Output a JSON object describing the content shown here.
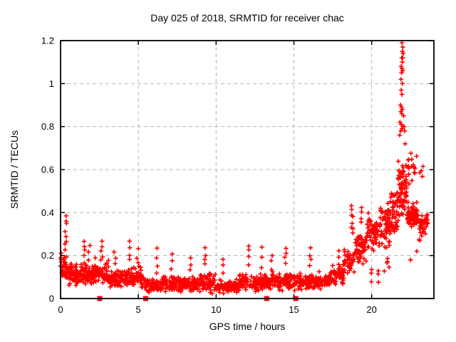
{
  "header": {
    "title": "Day 025 of 2018, SRMTID for receiver chac"
  },
  "chart_data": {
    "type": "scatter",
    "title": "Day 025 of 2018, SRMTID for receiver chac",
    "xlabel": "GPS time / hours",
    "ylabel": "SRMTID / TECUs",
    "xlim": [
      0,
      24
    ],
    "ylim": [
      0,
      1.2
    ],
    "xticks": [
      0,
      5,
      10,
      15,
      20
    ],
    "xtick_labels": [
      "0",
      "5",
      "10",
      "15",
      "20"
    ],
    "yticks": [
      0,
      0.2,
      0.4,
      0.6,
      0.8,
      1.0,
      1.2
    ],
    "ytick_labels": [
      "0",
      "0.2",
      "0.4",
      "0.6",
      "0.8",
      "1",
      "1.2"
    ],
    "grid": "dashed",
    "legend": "none",
    "marker": "plus",
    "marker_color": "#ff0000",
    "grid_color": "#b3b3b3",
    "border_color": "#000000",
    "background_color": "#ffffff",
    "seed": 42,
    "band_columns": [
      "t_start",
      "t_end",
      "count",
      "mean",
      "half_spread",
      "y_min",
      "y_max"
    ],
    "bands": [
      [
        0.0,
        0.3,
        25,
        0.15,
        0.05,
        0.07,
        0.22
      ],
      [
        0.3,
        0.5,
        14,
        0.12,
        0.05,
        0.05,
        0.2
      ],
      [
        0.5,
        1.2,
        55,
        0.11,
        0.05,
        0.03,
        0.2
      ],
      [
        1.2,
        2.2,
        75,
        0.11,
        0.05,
        0.03,
        0.22
      ],
      [
        2.2,
        3.1,
        68,
        0.12,
        0.05,
        0.04,
        0.22
      ],
      [
        3.1,
        4.3,
        85,
        0.09,
        0.04,
        0.02,
        0.18
      ],
      [
        4.3,
        5.2,
        62,
        0.1,
        0.045,
        0.03,
        0.2
      ],
      [
        5.2,
        5.6,
        22,
        0.07,
        0.035,
        0.02,
        0.13
      ],
      [
        5.6,
        6.6,
        55,
        0.06,
        0.03,
        0.015,
        0.12
      ],
      [
        6.6,
        7.6,
        62,
        0.07,
        0.035,
        0.015,
        0.14
      ],
      [
        7.6,
        9.0,
        88,
        0.065,
        0.035,
        0.012,
        0.14
      ],
      [
        9.0,
        10.0,
        64,
        0.075,
        0.04,
        0.015,
        0.16
      ],
      [
        10.0,
        11.5,
        95,
        0.06,
        0.03,
        0.012,
        0.13
      ],
      [
        11.5,
        13.0,
        95,
        0.07,
        0.04,
        0.015,
        0.16
      ],
      [
        13.0,
        14.0,
        62,
        0.075,
        0.04,
        0.015,
        0.16
      ],
      [
        14.0,
        15.5,
        92,
        0.08,
        0.04,
        0.02,
        0.17
      ],
      [
        15.5,
        16.5,
        62,
        0.075,
        0.035,
        0.02,
        0.15
      ],
      [
        16.5,
        17.4,
        56,
        0.08,
        0.035,
        0.025,
        0.15
      ],
      [
        17.4,
        18.2,
        52,
        0.11,
        0.045,
        0.04,
        0.2
      ],
      [
        18.2,
        18.9,
        46,
        0.17,
        0.06,
        0.07,
        0.3
      ],
      [
        18.9,
        19.7,
        56,
        0.24,
        0.07,
        0.12,
        0.38
      ],
      [
        19.7,
        20.5,
        62,
        0.3,
        0.08,
        0.15,
        0.46
      ],
      [
        19.9,
        20.45,
        6,
        0.12,
        0.04,
        0.07,
        0.18
      ],
      [
        20.5,
        21.2,
        62,
        0.34,
        0.09,
        0.2,
        0.52
      ],
      [
        20.7,
        21.15,
        5,
        0.15,
        0.04,
        0.09,
        0.2
      ],
      [
        21.2,
        21.7,
        48,
        0.41,
        0.1,
        0.25,
        0.62
      ],
      [
        21.7,
        22.25,
        72,
        0.5,
        0.13,
        0.3,
        0.8
      ],
      [
        22.25,
        22.95,
        85,
        0.39,
        0.05,
        0.3,
        0.5
      ],
      [
        22.3,
        22.9,
        18,
        0.6,
        0.08,
        0.48,
        0.78
      ],
      [
        22.95,
        23.45,
        36,
        0.34,
        0.06,
        0.22,
        0.48
      ],
      [
        23.0,
        23.3,
        4,
        0.58,
        0.04,
        0.52,
        0.65
      ],
      [
        23.45,
        23.65,
        10,
        0.36,
        0.04,
        0.28,
        0.44
      ]
    ],
    "spike_columns": [
      "t_center",
      "y_min",
      "y_max",
      "count"
    ],
    "spikes": [
      [
        0.33,
        0.2,
        0.39,
        9
      ],
      [
        1.55,
        0.2,
        0.26,
        4
      ],
      [
        1.85,
        0.18,
        0.25,
        3
      ],
      [
        2.65,
        0.2,
        0.27,
        4
      ],
      [
        3.5,
        0.16,
        0.21,
        3
      ],
      [
        4.45,
        0.18,
        0.26,
        4
      ],
      [
        4.95,
        0.16,
        0.23,
        3
      ],
      [
        6.2,
        0.12,
        0.23,
        4
      ],
      [
        7.15,
        0.14,
        0.2,
        3
      ],
      [
        8.35,
        0.13,
        0.19,
        3
      ],
      [
        9.3,
        0.16,
        0.23,
        4
      ],
      [
        10.4,
        0.12,
        0.18,
        3
      ],
      [
        12.1,
        0.16,
        0.25,
        4
      ],
      [
        12.9,
        0.15,
        0.24,
        3
      ],
      [
        13.6,
        0.14,
        0.2,
        3
      ],
      [
        14.45,
        0.16,
        0.24,
        4
      ],
      [
        16.05,
        0.15,
        0.23,
        4
      ],
      [
        17.9,
        0.16,
        0.22,
        3
      ],
      [
        18.75,
        0.3,
        0.43,
        8
      ],
      [
        19.3,
        0.35,
        0.42,
        4
      ]
    ],
    "peak_points": [
      [
        21.95,
        1.19
      ],
      [
        22.0,
        1.17
      ],
      [
        21.97,
        1.15
      ],
      [
        22.02,
        1.14
      ],
      [
        21.93,
        1.12
      ],
      [
        22.0,
        1.12
      ],
      [
        21.97,
        1.1
      ],
      [
        21.9,
        1.08
      ],
      [
        21.95,
        1.07
      ],
      [
        22.0,
        1.06
      ],
      [
        21.92,
        1.05
      ],
      [
        21.88,
        1.02
      ],
      [
        21.97,
        1.0
      ],
      [
        21.9,
        0.97
      ],
      [
        21.95,
        0.95
      ],
      [
        21.85,
        0.9
      ],
      [
        21.92,
        0.89
      ],
      [
        21.97,
        0.88
      ],
      [
        21.88,
        0.87
      ],
      [
        21.93,
        0.86
      ],
      [
        22.05,
        0.85
      ],
      [
        21.82,
        0.82
      ],
      [
        21.9,
        0.81
      ],
      [
        22.0,
        0.8
      ],
      [
        22.08,
        0.8
      ],
      [
        21.95,
        0.79
      ],
      [
        21.87,
        0.78
      ],
      [
        22.12,
        0.78
      ],
      [
        21.8,
        0.76
      ],
      [
        22.15,
        0.72
      ],
      [
        22.5,
        0.18
      ],
      [
        22.9,
        0.22
      ],
      [
        0.02,
        0.19
      ],
      [
        0.05,
        0.17
      ]
    ],
    "gap_markers": {
      "marker": "filled-square",
      "y": 0,
      "x": [
        2.52,
        5.47,
        13.25,
        15.12
      ]
    }
  }
}
